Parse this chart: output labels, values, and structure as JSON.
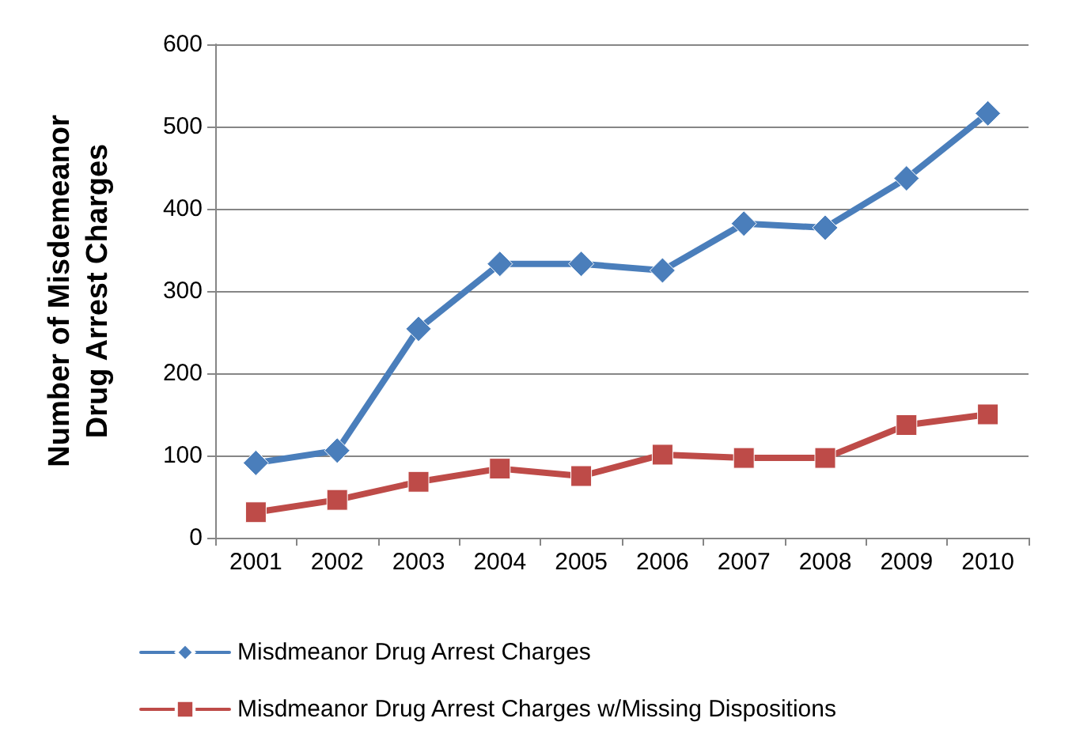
{
  "chart_data": {
    "type": "line",
    "ylabel": "Number of Misdemeanor Drug Arrest Charges",
    "categories": [
      "2001",
      "2002",
      "2003",
      "2004",
      "2005",
      "2006",
      "2007",
      "2008",
      "2009",
      "2010"
    ],
    "series": [
      {
        "name": "Misdmeanor Drug Arrest Charges",
        "color": "#4a7ebb",
        "marker": "diamond",
        "values": [
          91,
          106,
          254,
          333,
          333,
          325,
          382,
          377,
          437,
          516
        ]
      },
      {
        "name": "Misdmeanor Drug Arrest Charges w/Missing Dispositions",
        "color": "#be4b48",
        "marker": "square",
        "values": [
          31,
          46,
          68,
          84,
          75,
          101,
          97,
          97,
          137,
          150
        ]
      }
    ],
    "ylim": [
      0,
      600
    ],
    "yticks": [
      0,
      100,
      200,
      300,
      400,
      500,
      600
    ],
    "grid": "y",
    "legend": "bottom",
    "line_style": "solid"
  }
}
